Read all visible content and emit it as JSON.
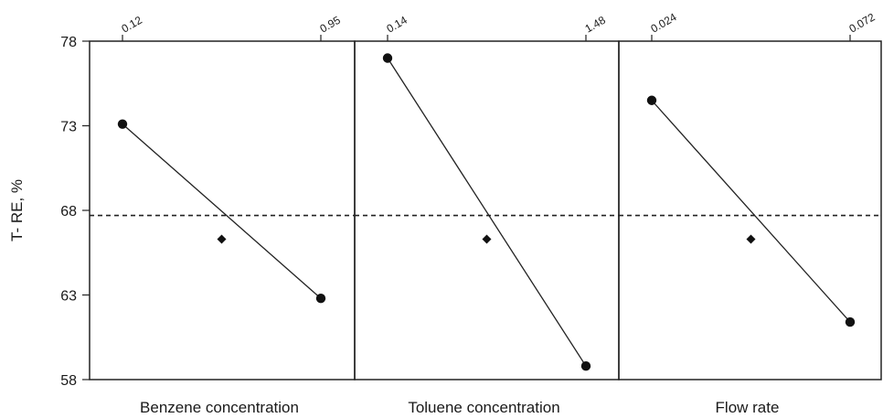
{
  "chart_data": {
    "type": "line",
    "ylabel": "T- RE, %",
    "ylim": [
      58,
      78
    ],
    "yticks": [
      58,
      63,
      68,
      73,
      78
    ],
    "mean_line": 67.7,
    "panels": [
      {
        "xlabel": "Benzene concentration",
        "levels": [
          "0.12",
          "0.95"
        ],
        "values": [
          73.1,
          62.8
        ],
        "center_value": 66.3
      },
      {
        "xlabel": "Toluene concentration",
        "levels": [
          "0.14",
          "1.48"
        ],
        "values": [
          77.0,
          58.8
        ],
        "center_value": 66.3
      },
      {
        "xlabel": "Flow rate",
        "levels": [
          "0.024",
          "0.072"
        ],
        "values": [
          74.5,
          61.4
        ],
        "center_value": 66.3
      }
    ]
  }
}
